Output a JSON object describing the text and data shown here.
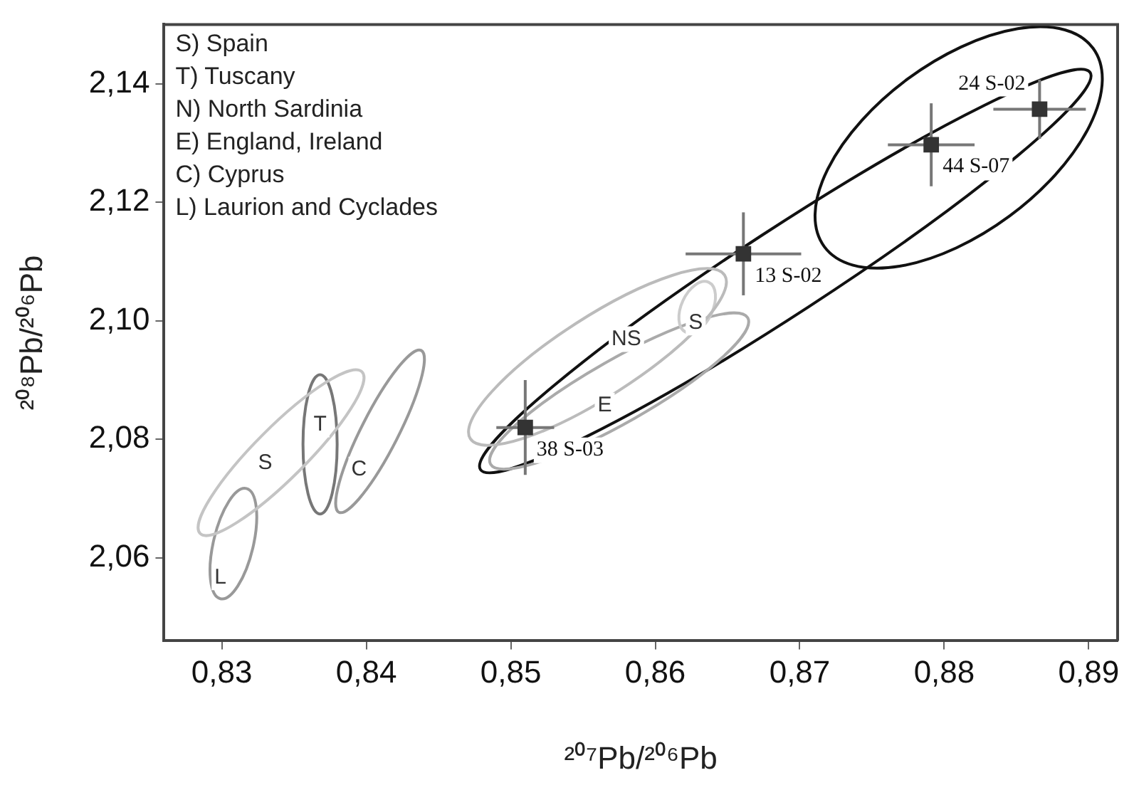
{
  "chart_data": {
    "type": "scatter",
    "xlabel": "²⁰⁷Pb/²⁰⁶Pb",
    "ylabel": "²⁰⁸Pb/²⁰⁶Pb",
    "x": [
      0.851,
      0.8661,
      0.8791,
      0.8866
    ],
    "series": [
      {
        "color": "#333333",
        "values": [
          2.082,
          2.1113,
          2.1297,
          2.1357
        ],
        "xerrors": [
          0.002,
          0.004,
          0.003,
          0.0032
        ],
        "errors": [
          0.008,
          0.007,
          0.007,
          0.005
        ]
      }
    ],
    "marker": "square",
    "grid": false,
    "legend": false,
    "xlim": [
      0.826,
      0.892
    ],
    "ylim": [
      2.046,
      2.15
    ],
    "xticks": [
      {
        "value": 0.83,
        "label": "0,83"
      },
      {
        "value": 0.84,
        "label": "0,84"
      },
      {
        "value": 0.85,
        "label": "0,85"
      },
      {
        "value": 0.86,
        "label": "0,86"
      },
      {
        "value": 0.87,
        "label": "0,87"
      },
      {
        "value": 0.88,
        "label": "0,88"
      },
      {
        "value": 0.89,
        "label": "0,89"
      }
    ],
    "yticks": [
      {
        "value": 2.06,
        "label": "2,06"
      },
      {
        "value": 2.08,
        "label": "2,08"
      },
      {
        "value": 2.1,
        "label": "2,10"
      },
      {
        "value": 2.12,
        "label": "2,12"
      },
      {
        "value": 2.14,
        "label": "2,14"
      }
    ],
    "annotations": [
      "S) Spain",
      "T) Tuscany",
      "N) North Sardinia",
      "E) England, Ireland",
      "C) Cyprus",
      "L) Laurion and Cyclades",
      {
        "text": "38 S-03",
        "x": 0.851,
        "y": 2.082
      },
      {
        "text": "13 S-02",
        "x": 0.8661,
        "y": 2.1113
      },
      {
        "text": "44 S-07",
        "x": 0.8791,
        "y": 2.1297
      },
      {
        "text": "24 S-02",
        "x": 0.8866,
        "y": 2.1357
      },
      "S",
      "T",
      "C",
      "L",
      "NS",
      "S",
      "E"
    ]
  }
}
